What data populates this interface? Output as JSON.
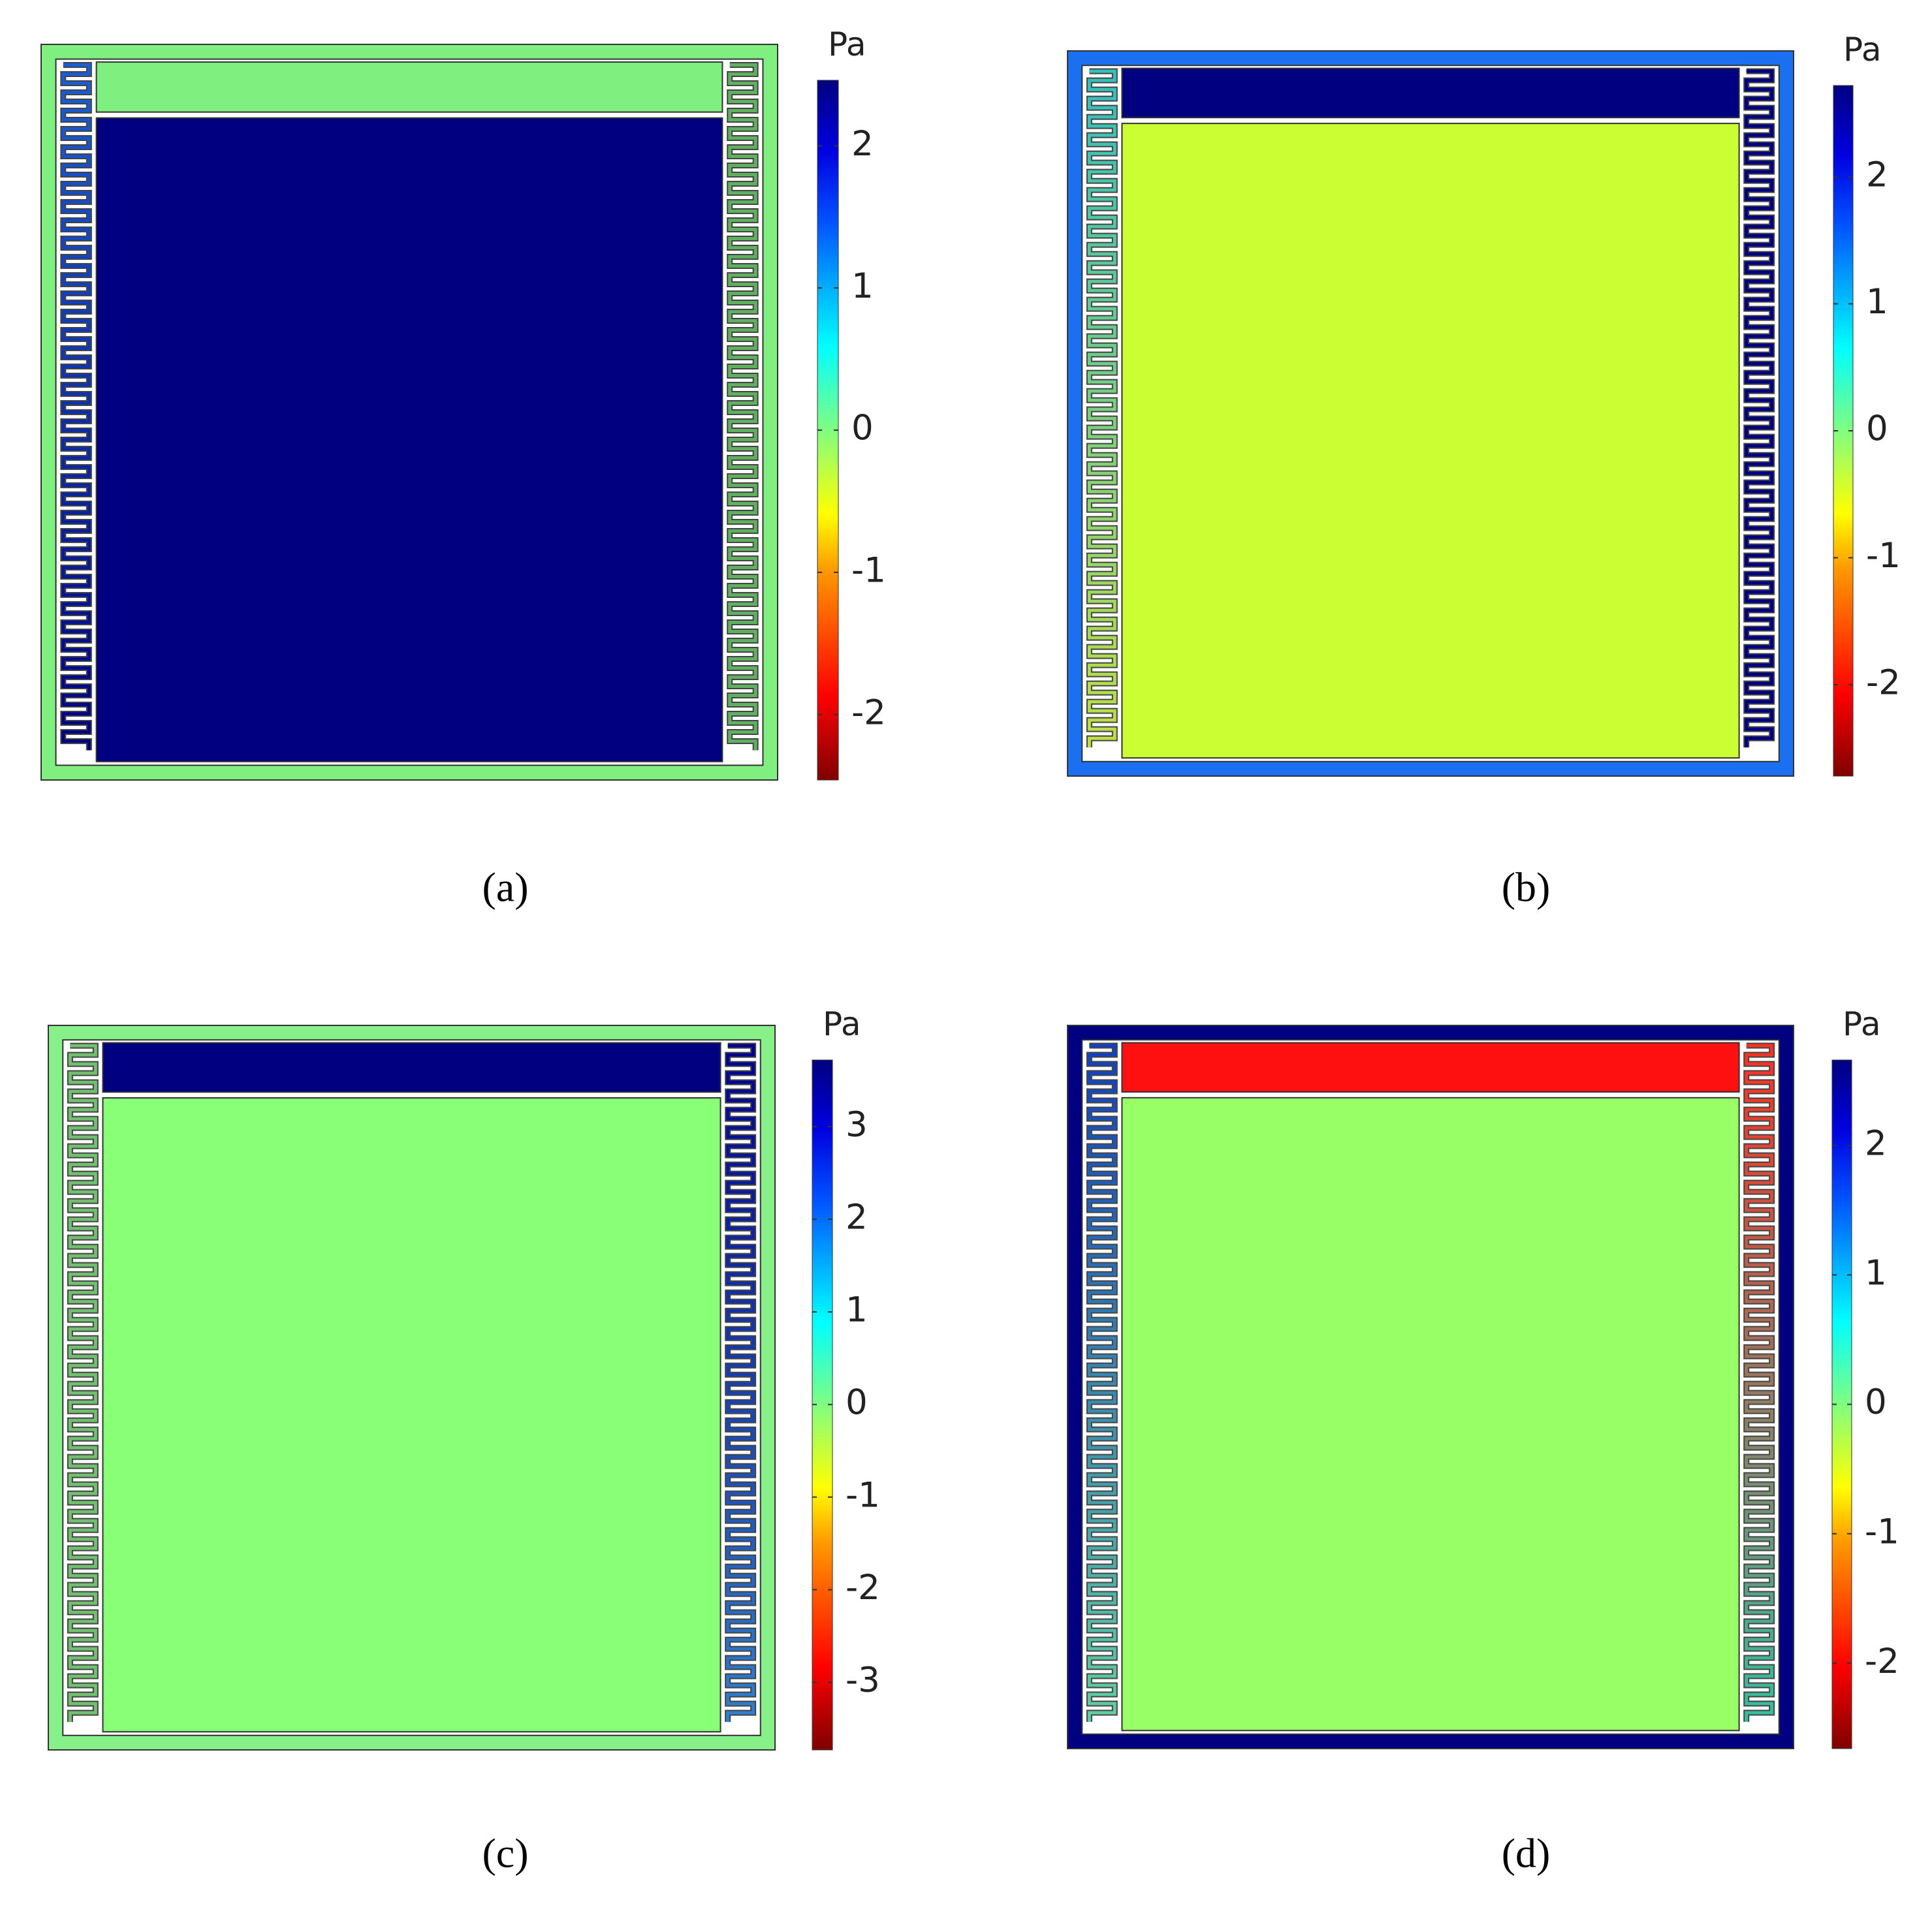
{
  "panels": [
    {
      "label": "(a)",
      "unit": "Pa",
      "colorbar": {
        "range": [
          -2.46,
          2.46
        ],
        "ticks": [
          -2,
          -1,
          0,
          1,
          2
        ]
      },
      "colors": {
        "frame": "#7ff07f",
        "top": "#7ff07f",
        "main": "#000080",
        "left_channel": [
          "#1a5fd6",
          "#000080"
        ],
        "right_channel": [
          "#5fb05f",
          "#5fb05f"
        ]
      }
    },
    {
      "label": "(b)",
      "unit": "Pa",
      "colorbar": {
        "range": [
          -2.72,
          2.72
        ],
        "ticks": [
          -2,
          -1,
          0,
          1,
          2
        ]
      },
      "colors": {
        "frame": "#1a70f0",
        "top": "#000080",
        "main": "#ccff33",
        "left_channel": [
          "#30c0c0",
          "#c0e040"
        ],
        "right_channel": [
          "#000080",
          "#000080"
        ]
      }
    },
    {
      "label": "(c)",
      "unit": "Pa",
      "colorbar": {
        "range": [
          -3.73,
          3.72
        ],
        "ticks": [
          -3,
          -2,
          -1,
          0,
          1,
          2,
          3
        ]
      },
      "colors": {
        "frame": "#88f088",
        "top": "#000080",
        "main": "#88ff77",
        "left_channel": [
          "#70c070",
          "#70c070"
        ],
        "right_channel": [
          "#000090",
          "#3080d0"
        ]
      }
    },
    {
      "label": "(d)",
      "unit": "Pa",
      "colorbar": {
        "range": [
          -2.66,
          2.66
        ],
        "ticks": [
          -2,
          -1,
          0,
          1,
          2
        ]
      },
      "colors": {
        "frame": "#000080",
        "top": "#ff1010",
        "main": "#99ff66",
        "left_channel": [
          "#1040c0",
          "#60d0a0"
        ],
        "right_channel": [
          "#ff3020",
          "#30c0a0"
        ]
      }
    }
  ]
}
